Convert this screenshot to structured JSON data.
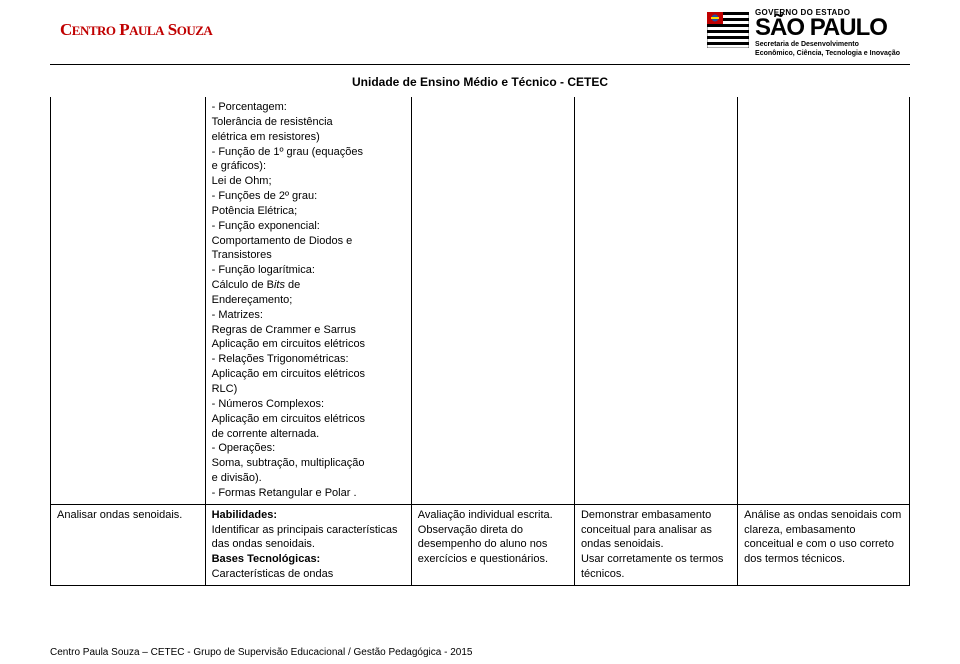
{
  "header": {
    "left_logo_main": "Centro Paula Souza",
    "right_gov": "GOVERNO DO ESTADO",
    "right_state": "SÃO PAULO",
    "right_sub1": "Secretaria de Desenvolvimento",
    "right_sub2": "Econômico, Ciência, Tecnologia e Inovação"
  },
  "subtitle": "Unidade de Ensino Médio e Técnico - CETEC",
  "row1": {
    "col2_lines": [
      "- Porcentagem:",
      "Tolerância de resistência",
      "elétrica em resistores)",
      "- Função de 1º grau (equações",
      "e gráficos):",
      "Lei de Ohm;",
      "- Funções de 2º grau:",
      "Potência Elétrica;",
      "- Função exponencial:",
      "Comportamento de Diodos e",
      "Transistores",
      "- Função logarítmica:",
      "Cálculo de B",
      "its",
      " de",
      "Endereçamento;",
      "- Matrizes:",
      "Regras de Crammer e Sarrus",
      "Aplicação em circuitos elétricos",
      "- Relações Trigonométricas:",
      "Aplicação em circuitos elétricos",
      "RLC)",
      "- Números Complexos:",
      "Aplicação em circuitos elétricos",
      "de corrente alternada.",
      "- Operações:",
      "Soma, subtração, multiplicação",
      "e divisão).",
      "- Formas Retangular e Polar ."
    ]
  },
  "row2": {
    "col1": "Analisar ondas senoidais.",
    "col2_hab": "Habilidades:",
    "col2_hab_text": "Identificar as principais características das ondas senoidais.",
    "col2_bt": "Bases Tecnológicas:",
    "col2_bt_text": "Características de ondas",
    "col3": "Avaliação individual escrita. Observação direta do desempenho do aluno nos exercícios e questionários.",
    "col4": "Demonstrar embasamento conceitual para analisar as ondas senoidais.\nUsar corretamente os termos técnicos.",
    "col5": "Análise as ondas senoidais com clareza, embasamento conceitual e com o uso correto dos termos técnicos."
  },
  "footer": "Centro Paula Souza – CETEC - Grupo de Supervisão Educacional / Gestão Pedagógica - 2015",
  "colors": {
    "red": "#c00000",
    "black": "#000000",
    "border": "#000000",
    "bg": "#ffffff"
  },
  "typography": {
    "body_fontsize": 11,
    "subtitle_fontsize": 12,
    "logo_fontsize": 17
  }
}
